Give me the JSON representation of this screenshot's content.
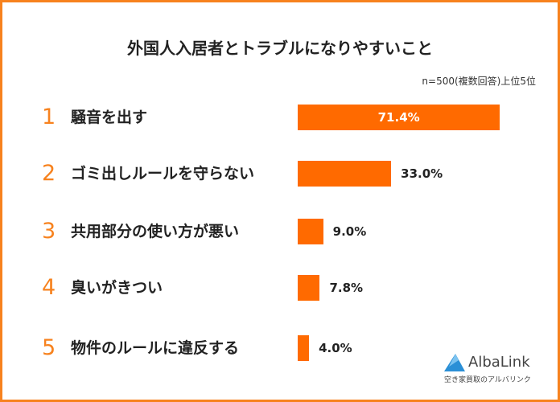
{
  "chart_data": {
    "type": "bar",
    "orientation": "horizontal",
    "title": "外国人入居者とトラブルになりやすいこと",
    "subtitle": "n=500(複数回答)上位5位",
    "ranks": [
      "1",
      "2",
      "3",
      "4",
      "5"
    ],
    "categories": [
      "騒音を出す",
      "ゴミ出しルールを守らない",
      "共用部分の使い方が悪い",
      "臭いがきつい",
      "物件のルールに違反する"
    ],
    "values": [
      71.4,
      33.0,
      9.0,
      7.8,
      4.0
    ],
    "value_labels": [
      "71.4%",
      "33.0%",
      "9.0%",
      "7.8%",
      "4.0%"
    ],
    "xlim": [
      0,
      100
    ],
    "grid": false,
    "colors": {
      "bar": "#ff6a00",
      "accent": "#f7821e"
    }
  },
  "logo": {
    "name": "AlbaLink",
    "tagline": "空き家買取のアルバリンク"
  }
}
